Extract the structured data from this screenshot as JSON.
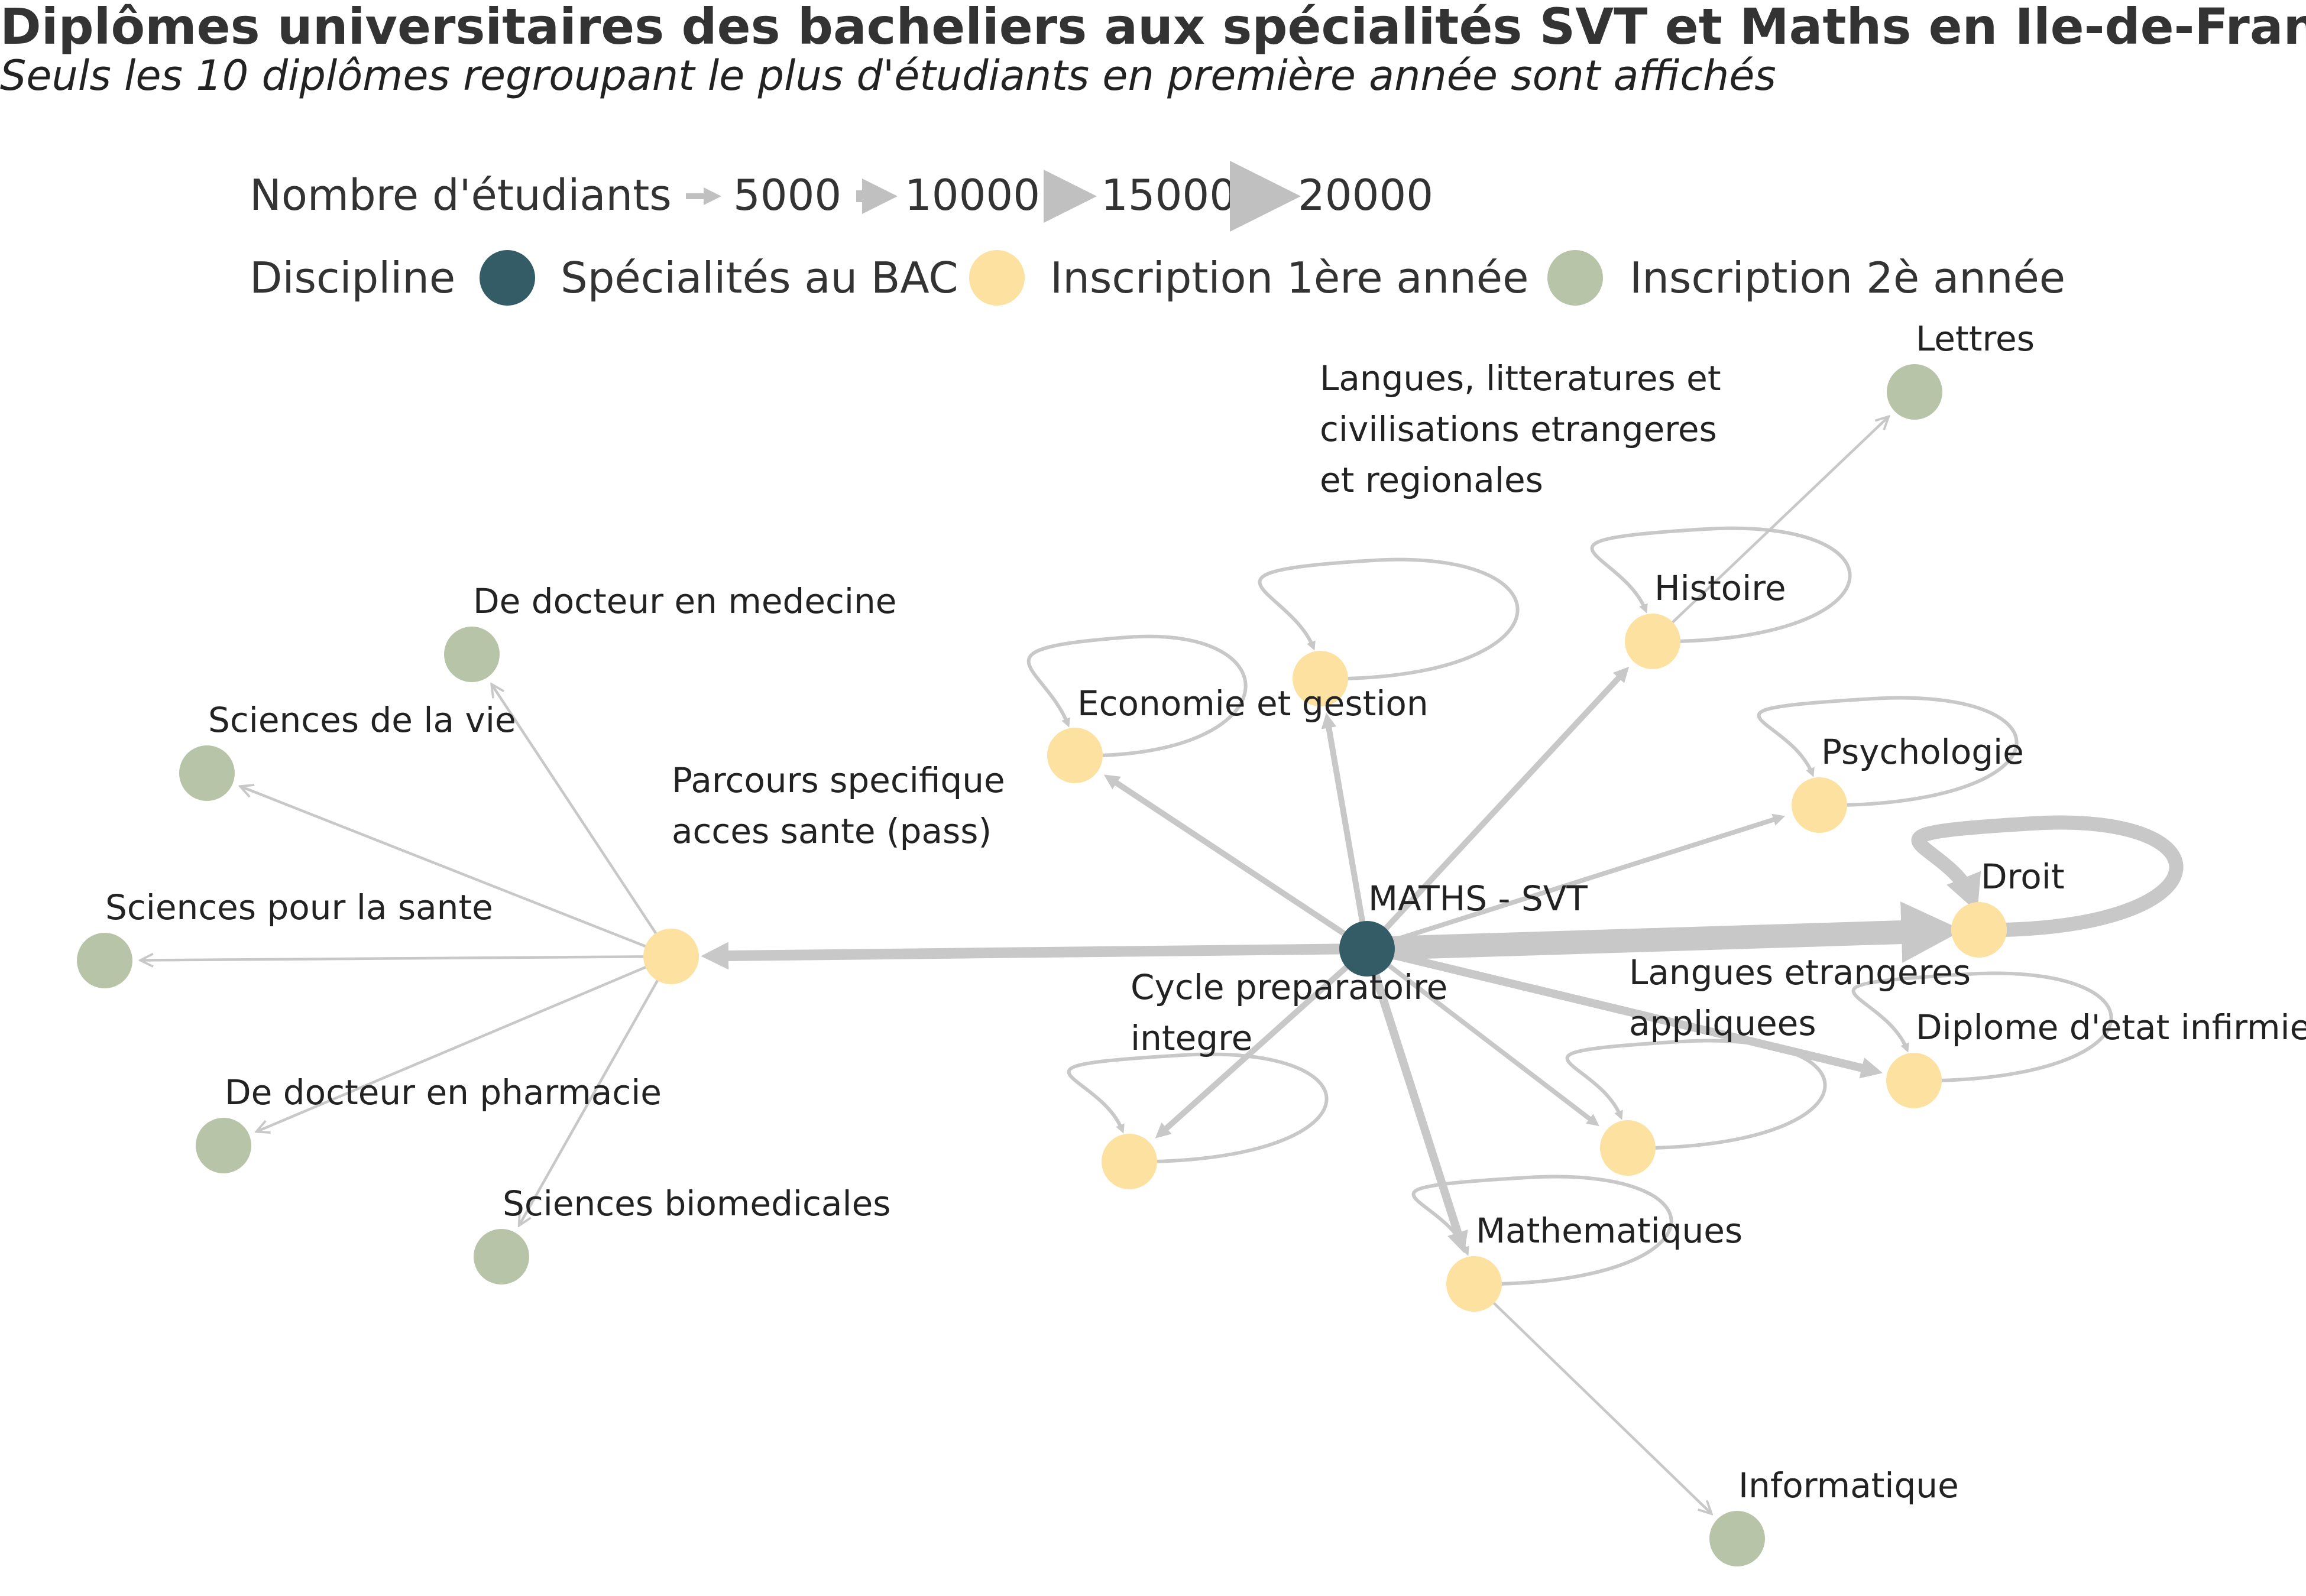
{
  "title": "Diplômes universitaires des bacheliers aux spécialités SVT et Maths en Ile-de-France",
  "subtitle": "Seuls les 10 diplômes regroupant le plus d'étudiants en première année sont affichés",
  "legend": {
    "size_title": "Nombre d'étudiants",
    "size_values": [
      "5000",
      "10000",
      "15000",
      "20000"
    ],
    "discipline_title": "Discipline",
    "categories": [
      {
        "label": "Spécialités au BAC",
        "color": "#335c67"
      },
      {
        "label": "Inscription 1ère année",
        "color": "#fde1a0"
      },
      {
        "label": "Inscription 2è année",
        "color": "#b8c4a8"
      }
    ]
  },
  "colors": {
    "edge": "#c8c8c8",
    "bac": "#335c67",
    "first": "#fde1a0",
    "second": "#b8c4a8"
  },
  "nodes": [
    {
      "id": "maths-svt",
      "label": "MATHS - SVT",
      "type": "bac"
    },
    {
      "id": "pass",
      "label": "Parcours specifique\nacces sante (pass)",
      "type": "first"
    },
    {
      "id": "eco",
      "label": "Economie et gestion",
      "type": "first"
    },
    {
      "id": "eco2",
      "label": "",
      "type": "first"
    },
    {
      "id": "histoire",
      "label": "Histoire",
      "type": "first"
    },
    {
      "id": "psycho",
      "label": "Psychologie",
      "type": "first"
    },
    {
      "id": "droit",
      "label": "Droit",
      "type": "first"
    },
    {
      "id": "infirmier",
      "label": "Diplome d'etat infirmier",
      "type": "first"
    },
    {
      "id": "lea",
      "label": "Langues etrangeres\nappliquees",
      "type": "first"
    },
    {
      "id": "cycle",
      "label": "Cycle preparatoire\nintegre",
      "type": "first"
    },
    {
      "id": "maths",
      "label": "Mathematiques",
      "type": "first"
    },
    {
      "id": "medecine",
      "label": "De docteur en medecine",
      "type": "second"
    },
    {
      "id": "vie",
      "label": "Sciences de la vie",
      "type": "second"
    },
    {
      "id": "sante",
      "label": "Sciences pour la sante",
      "type": "second"
    },
    {
      "id": "pharmacie",
      "label": "De docteur en pharmacie",
      "type": "second"
    },
    {
      "id": "biomed",
      "label": "Sciences biomedicales",
      "type": "second"
    },
    {
      "id": "lettres",
      "label": "Lettres",
      "type": "second"
    },
    {
      "id": "informatique",
      "label": "Informatique",
      "type": "second"
    },
    {
      "id": "llcer",
      "label": "Langues, litteratures et\ncivilisations etrangeres\net regionales",
      "type": "label-only"
    }
  ],
  "edges": [
    {
      "from": "maths-svt",
      "to": "pass",
      "students": 9000
    },
    {
      "from": "maths-svt",
      "to": "eco",
      "students": 5000
    },
    {
      "from": "maths-svt",
      "to": "eco2",
      "students": 5000
    },
    {
      "from": "maths-svt",
      "to": "histoire",
      "students": 5000
    },
    {
      "from": "maths-svt",
      "to": "psycho",
      "students": 4000
    },
    {
      "from": "maths-svt",
      "to": "droit",
      "students": 20000
    },
    {
      "from": "maths-svt",
      "to": "infirmier",
      "students": 7000
    },
    {
      "from": "maths-svt",
      "to": "lea",
      "students": 4000
    },
    {
      "from": "maths-svt",
      "to": "cycle",
      "students": 5000
    },
    {
      "from": "maths-svt",
      "to": "maths",
      "students": 7000
    },
    {
      "from": "pass",
      "to": "medecine",
      "students": 1500
    },
    {
      "from": "pass",
      "to": "vie",
      "students": 1500
    },
    {
      "from": "pass",
      "to": "sante",
      "students": 1500
    },
    {
      "from": "pass",
      "to": "pharmacie",
      "students": 1500
    },
    {
      "from": "pass",
      "to": "biomed",
      "students": 1500
    },
    {
      "from": "histoire",
      "to": "lettres",
      "students": 1500
    },
    {
      "from": "maths",
      "to": "informatique",
      "students": 1500
    },
    {
      "from": "eco",
      "to": "eco",
      "students": 3000,
      "loop": true
    },
    {
      "from": "eco2",
      "to": "eco2",
      "students": 3000,
      "loop": true
    },
    {
      "from": "histoire",
      "to": "histoire",
      "students": 3000,
      "loop": true
    },
    {
      "from": "psycho",
      "to": "psycho",
      "students": 3000,
      "loop": true
    },
    {
      "from": "droit",
      "to": "droit",
      "students": 12000,
      "loop": true
    },
    {
      "from": "infirmier",
      "to": "infirmier",
      "students": 3000,
      "loop": true
    },
    {
      "from": "lea",
      "to": "lea",
      "students": 3000,
      "loop": true
    },
    {
      "from": "cycle",
      "to": "cycle",
      "students": 3000,
      "loop": true
    },
    {
      "from": "maths",
      "to": "maths",
      "students": 3000,
      "loop": true
    }
  ]
}
